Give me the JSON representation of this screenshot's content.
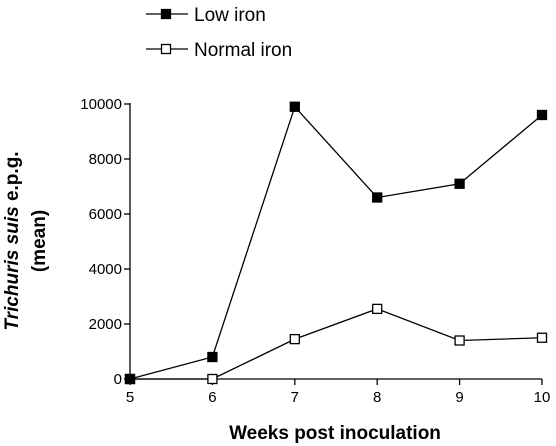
{
  "chart_data": {
    "type": "line",
    "xlabel": "Weeks post inoculation",
    "ylabel": {
      "italic_part": "Trichuris suis",
      "rest": " e.p.g.",
      "second_line": "(mean)"
    },
    "x": [
      5,
      6,
      7,
      8,
      9,
      10
    ],
    "xlim": [
      5,
      10
    ],
    "ylim": [
      0,
      10000
    ],
    "x_ticks": [
      "5",
      "6",
      "7",
      "8",
      "9",
      "10"
    ],
    "y_ticks": [
      "0",
      "2000",
      "4000",
      "6000",
      "8000",
      "10000"
    ],
    "grid": false,
    "legend_position": "top-left",
    "series": [
      {
        "name": "Low iron",
        "marker": "filled-square",
        "color": "#000000",
        "values": [
          0,
          800,
          9900,
          6600,
          7100,
          9600
        ]
      },
      {
        "name": "Normal iron",
        "marker": "open-square",
        "color": "#000000",
        "values": [
          0,
          0,
          1450,
          2550,
          1400,
          1500
        ]
      }
    ]
  }
}
